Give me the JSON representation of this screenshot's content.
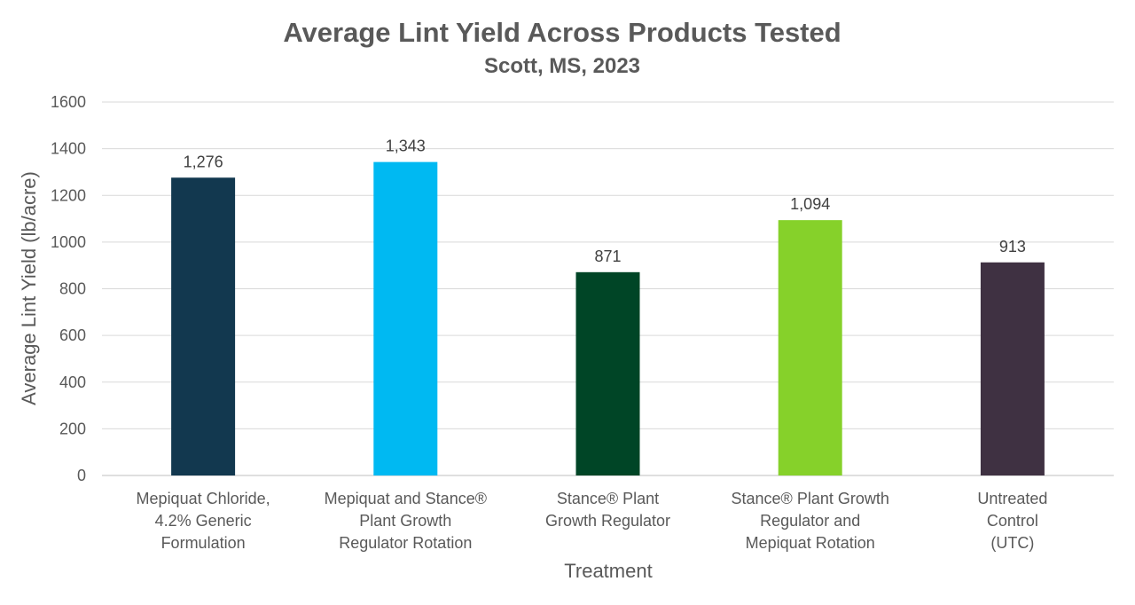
{
  "chart_data": {
    "type": "bar",
    "title": "Average Lint Yield Across Products Tested",
    "subtitle": "Scott, MS, 2023",
    "xlabel": "Treatment",
    "ylabel": "Average Lint Yield (lb/acre)",
    "ylim": [
      0,
      1600
    ],
    "yticks": [
      0,
      200,
      400,
      600,
      800,
      1000,
      1200,
      1400,
      1600
    ],
    "grid": true,
    "categories": [
      [
        "Mepiquat Chloride,",
        "4.2% Generic",
        "Formulation"
      ],
      [
        "Mepiquat and Stance®",
        "Plant Growth",
        "Regulator Rotation"
      ],
      [
        "Stance® Plant",
        "Growth Regulator"
      ],
      [
        "Stance® Plant Growth",
        "Regulator and",
        "Mepiquat Rotation"
      ],
      [
        "Untreated",
        "Control",
        "(UTC)"
      ]
    ],
    "values": [
      1276,
      1343,
      871,
      1094,
      913
    ],
    "data_labels": [
      "1,276",
      "1,343",
      "871",
      "1,094",
      "913"
    ],
    "colors": [
      "#12384f",
      "#00b9f2",
      "#004526",
      "#86d12a",
      "#3f3142"
    ]
  }
}
